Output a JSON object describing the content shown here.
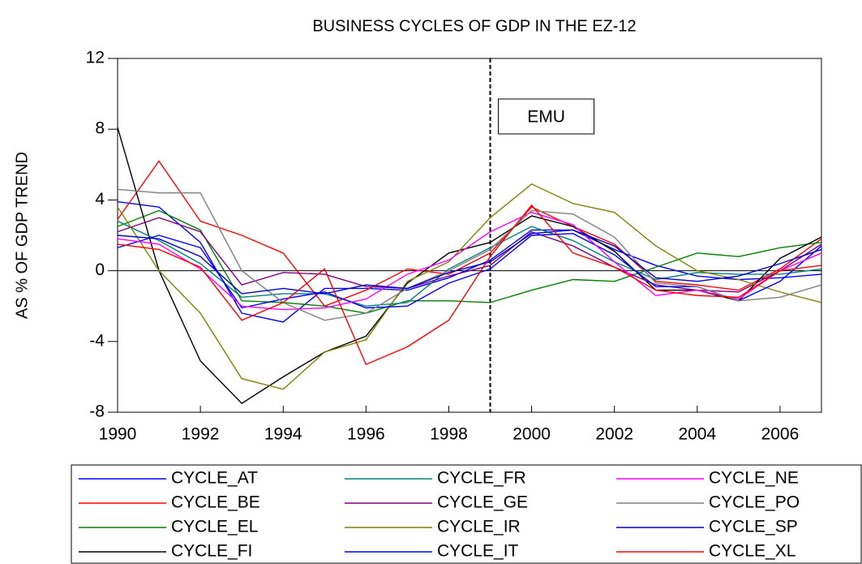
{
  "chart_data": {
    "type": "line",
    "title": "BUSINESS CYCLES OF GDP IN THE EZ-12",
    "y_label": "AS % OF GDP TREND",
    "annotation": "EMU",
    "vline": 1999,
    "x": [
      1990,
      1991,
      1992,
      1993,
      1994,
      1995,
      1996,
      1997,
      1998,
      1999,
      2000,
      2001,
      2002,
      2003,
      2004,
      2005,
      2006,
      2007
    ],
    "xlim": [
      1990,
      2007
    ],
    "xticks": [
      1990,
      1992,
      1994,
      1996,
      1998,
      2000,
      2002,
      2004,
      2006
    ],
    "ylim": [
      -8,
      12
    ],
    "yticks": [
      -8,
      -4,
      0,
      4,
      8,
      12
    ],
    "series": [
      {
        "name": "CYCLE_AT",
        "color": "#0000ff",
        "values": [
          3.9,
          3.6,
          1.6,
          -2.4,
          -2.9,
          -1.0,
          -1.0,
          -1.1,
          -0.4,
          0.6,
          2.3,
          2.3,
          1.2,
          0.3,
          -0.3,
          -0.5,
          -0.4,
          -0.2
        ]
      },
      {
        "name": "CYCLE_BE",
        "color": "#ff0000",
        "values": [
          2.9,
          6.2,
          2.8,
          2.0,
          1.0,
          -2.0,
          -1.1,
          0.1,
          -0.2,
          1.0,
          3.6,
          2.5,
          1.5,
          -0.6,
          -0.8,
          -1.1,
          0.1,
          1.8
        ]
      },
      {
        "name": "CYCLE_EL",
        "color": "#008000",
        "values": [
          2.5,
          3.4,
          2.3,
          -1.7,
          -1.8,
          -2.0,
          -2.4,
          -1.7,
          -1.7,
          -1.8,
          -1.1,
          -0.5,
          -0.6,
          0.2,
          1.0,
          0.8,
          1.3,
          1.6
        ]
      },
      {
        "name": "CYCLE_FI",
        "color": "#000000",
        "values": [
          8.1,
          0,
          -5.1,
          -7.5,
          -6.0,
          -4.6,
          -3.7,
          -0.7,
          1.0,
          1.6,
          3.1,
          2.5,
          1.1,
          -1.1,
          -1.1,
          -1.7,
          0.7,
          1.9
        ]
      },
      {
        "name": "CYCLE_FR",
        "color": "#008080",
        "values": [
          2.8,
          1.7,
          0.4,
          -1.5,
          -1.3,
          -1.3,
          -2.0,
          -1.8,
          0.1,
          1.3,
          2.5,
          1.7,
          0.5,
          -0.5,
          -0.1,
          -0.2,
          -0.2,
          0.1
        ]
      },
      {
        "name": "CYCLE_GE",
        "color": "#800080",
        "values": [
          2.2,
          3.0,
          2.2,
          -0.8,
          -0.1,
          -0.2,
          -0.9,
          -1.0,
          -0.3,
          0.3,
          2.2,
          1.4,
          0.2,
          -0.8,
          -1.1,
          -1.2,
          0.0,
          1.5
        ]
      },
      {
        "name": "CYCLE_IR",
        "color": "#808000",
        "values": [
          3.6,
          0,
          -2.4,
          -6.1,
          -6.7,
          -4.6,
          -3.9,
          -0.6,
          0.5,
          3.0,
          4.9,
          3.8,
          3.3,
          1.4,
          0,
          -0.5,
          -1.2,
          -1.8
        ]
      },
      {
        "name": "CYCLE_IT",
        "color": "#0000ff",
        "values": [
          1.3,
          2.0,
          1.3,
          -2.1,
          -1.6,
          -1.2,
          -2.1,
          -2.0,
          -0.7,
          0.1,
          2.0,
          2.1,
          0.9,
          -0.9,
          -0.9,
          -1.7,
          -0.6,
          1.4
        ]
      },
      {
        "name": "CYCLE_NE",
        "color": "#ff00ff",
        "values": [
          1.8,
          1.5,
          0.1,
          -2.0,
          -2.2,
          -2.1,
          -1.6,
          -0.2,
          0.6,
          2.2,
          3.3,
          2.6,
          0.5,
          -1.4,
          -1.1,
          -1.6,
          0.0,
          1.0
        ]
      },
      {
        "name": "CYCLE_PO",
        "color": "#808080",
        "values": [
          4.6,
          4.4,
          4.4,
          0,
          -1.8,
          -2.8,
          -2.4,
          -1.0,
          0,
          1.2,
          3.4,
          3.2,
          1.9,
          -0.7,
          -0.9,
          -1.7,
          -1.5,
          -0.8
        ]
      },
      {
        "name": "CYCLE_SP",
        "color": "#0000cc",
        "values": [
          2.0,
          1.8,
          0.8,
          -1.3,
          -1.0,
          -1.3,
          -0.8,
          -1.0,
          -0.1,
          0.5,
          2.1,
          2.3,
          1.4,
          -0.4,
          -0.6,
          -0.3,
          0.4,
          1.2
        ]
      },
      {
        "name": "CYCLE_XL",
        "color": "#ff0000",
        "values": [
          1.5,
          1.2,
          0.2,
          -2.8,
          -1.8,
          0.1,
          -5.3,
          -4.3,
          -2.8,
          0.8,
          3.7,
          1.0,
          0.2,
          -1.1,
          -1.4,
          -1.5,
          0.0,
          0.3
        ]
      }
    ]
  }
}
